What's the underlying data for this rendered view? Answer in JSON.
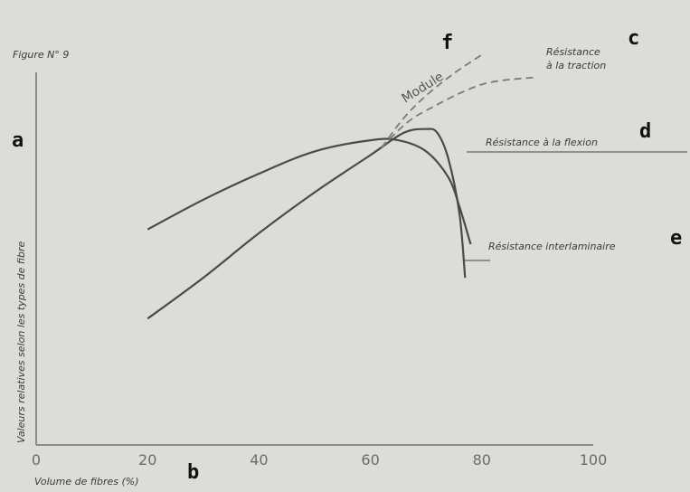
{
  "chart_data": {
    "type": "line",
    "title": "Figure N° 9",
    "xlabel": "Volume de fibres (%)",
    "ylabel": "Valeurs relatives selon les types de fibre",
    "xlim": [
      0,
      100
    ],
    "x_ticks": [
      "0",
      "20",
      "40",
      "60",
      "80",
      "100"
    ],
    "grid": false,
    "series": [
      {
        "name": "Résistance à la flexion",
        "x": [
          20,
          30,
          40,
          50,
          60,
          65,
          70,
          74,
          76,
          78
        ],
        "y": [
          0.58,
          0.66,
          0.73,
          0.79,
          0.82,
          0.82,
          0.79,
          0.72,
          0.64,
          0.54
        ]
      },
      {
        "name": "Résistance interlaminaire",
        "x": [
          20,
          30,
          40,
          50,
          60,
          66,
          70,
          72,
          74,
          76,
          77
        ],
        "y": [
          0.34,
          0.45,
          0.57,
          0.68,
          0.78,
          0.84,
          0.85,
          0.84,
          0.77,
          0.62,
          0.45
        ]
      },
      {
        "name": "Résistance à la traction",
        "x": [
          62,
          66,
          70,
          80,
          90
        ],
        "y": [
          0.8,
          0.86,
          0.9,
          0.97,
          0.99
        ]
      },
      {
        "name": "Module",
        "x": [
          62,
          66,
          70,
          75,
          80
        ],
        "y": [
          0.8,
          0.88,
          0.94,
          1.0,
          1.05
        ]
      }
    ],
    "dashed_series": [
      "Résistance à la traction",
      "Module"
    ],
    "annotations": {
      "curve_label_module": "Module",
      "letters": [
        "a",
        "b",
        "c",
        "d",
        "e",
        "f"
      ]
    }
  }
}
